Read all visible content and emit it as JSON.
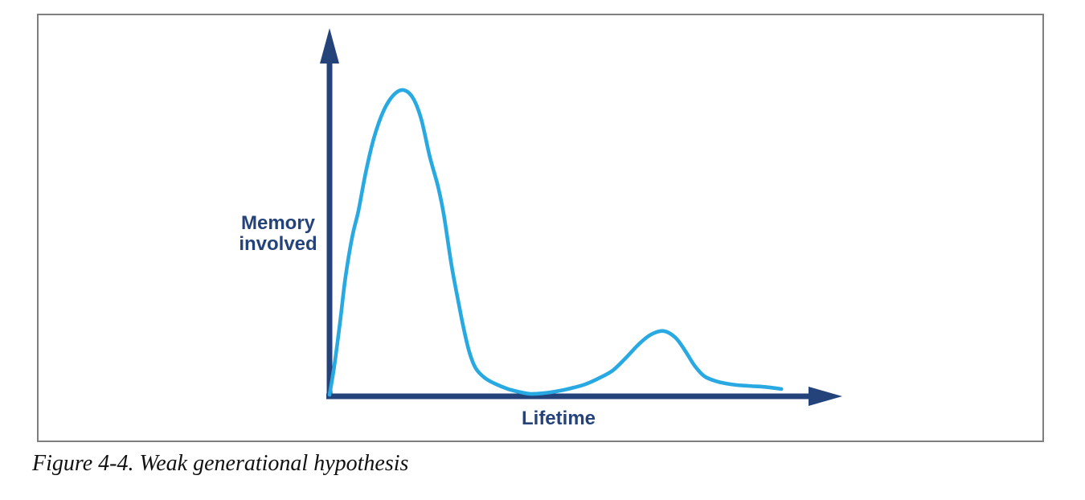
{
  "figure": {
    "caption": "Figure 4-4. Weak generational hypothesis"
  },
  "colors": {
    "axis": "#25437b",
    "label_text": "#25437b",
    "curve": "#29a9e1",
    "panel_border": "#7f7f7f",
    "caption_text": "#111111",
    "background": "#ffffff"
  },
  "chart_data": {
    "type": "line",
    "title": "",
    "xlabel": "Lifetime",
    "ylabel": "Memory involved",
    "ylabel_lines": [
      "Memory",
      "involved"
    ],
    "xlim": [
      0,
      100
    ],
    "ylim": [
      0,
      100
    ],
    "grid": false,
    "legend": "none",
    "axes_style": "arrowed, no ticks, no tick labels",
    "axis_color": "#25437b",
    "description": "Conceptual sketch: amount of memory involved over an object lifetime; a large peak early in the lifetime, a near-zero valley, then a small secondary bump late in the lifetime.",
    "series": [
      {
        "name": "memory-involved-curve",
        "color": "#29a9e1",
        "x": [
          0.0,
          1.0,
          2.2,
          3.3,
          4.7,
          6.0,
          7.5,
          9.2,
          11.2,
          13.3,
          15.3,
          17.3,
          19.0,
          20.8,
          22.5,
          23.7,
          25.3,
          26.7,
          27.8,
          29.0,
          30.3,
          32.2,
          34.2,
          37.0,
          39.7,
          41.7,
          44.2,
          47.0,
          50.0,
          53.0,
          56.0,
          58.7,
          61.3,
          64.2,
          66.7,
          69.3,
          71.7,
          73.7,
          75.7,
          77.7,
          80.0,
          83.3,
          86.7,
          90.0,
          93.7
        ],
        "y": [
          0.5,
          10.0,
          24.4,
          38.8,
          52.0,
          60.6,
          73.0,
          84.3,
          93.2,
          98.4,
          100.0,
          97.4,
          90.6,
          78.2,
          68.5,
          59.3,
          42.8,
          31.0,
          22.3,
          14.4,
          9.2,
          6.0,
          4.2,
          2.4,
          1.3,
          0.8,
          1.0,
          1.6,
          2.6,
          3.9,
          6.0,
          8.4,
          12.3,
          17.1,
          20.2,
          21.3,
          19.2,
          15.0,
          10.0,
          6.6,
          5.0,
          3.9,
          3.4,
          3.1,
          2.4
        ]
      }
    ],
    "annotations": []
  }
}
